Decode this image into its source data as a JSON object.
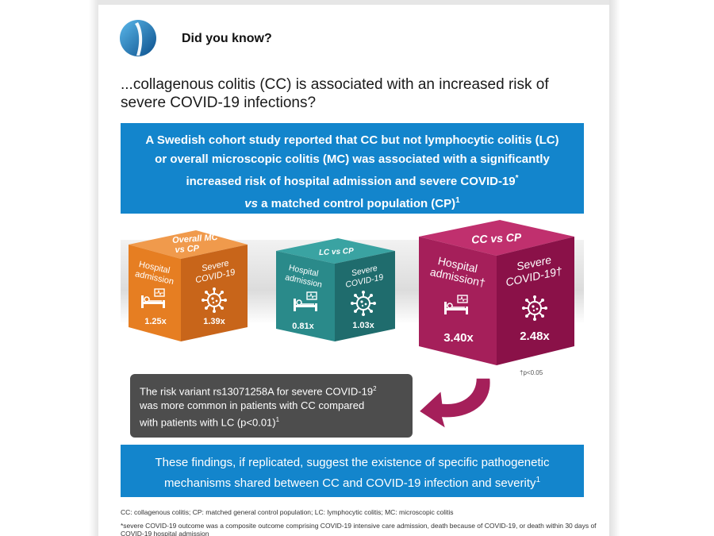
{
  "header": {
    "title": "Did you know?"
  },
  "question": {
    "line1": "...collagenous colitis (CC) is associated with an increased risk of",
    "line2": "severe COVID-19 infections?"
  },
  "banner": {
    "line1": "A Swedish cohort study reported that CC but not lymphocytic colitis (LC)",
    "line2": "or overall microscopic colitis (MC) was associated with a significantly",
    "line3": "increased risk of hospital admission and severe COVID-19",
    "line3_sup": "*",
    "line4_vs": "vs",
    "line4_rest": " a matched control population (CP)",
    "line4_sup": "1"
  },
  "cubes": [
    {
      "top_line1": "Overall MC",
      "top_line2": "vs CP",
      "left_label": [
        "Hospital",
        "admission"
      ],
      "right_label": [
        "Severe",
        "COVID-19"
      ],
      "left_value": "1.25x",
      "right_value": "1.39x"
    },
    {
      "top_line1": "LC vs CP",
      "left_label": [
        "Hospital",
        "admission"
      ],
      "right_label": [
        "Severe",
        "COVID-19"
      ],
      "left_value": "0.81x",
      "right_value": "1.03x"
    },
    {
      "top_line1": "CC vs CP",
      "left_label": [
        "Hospital",
        "admission†"
      ],
      "right_label": [
        "Severe",
        "COVID-19†"
      ],
      "left_value": "3.40x",
      "right_value": "2.48x"
    }
  ],
  "colors": {
    "blue": "#1385cc",
    "orange_top": "#f09a4c",
    "orange_left": "#e67e22",
    "orange_right": "#c8651a",
    "teal_top": "#3aa3a2",
    "teal_left": "#2a8a8a",
    "teal_right": "#1f6c6d",
    "magenta_top": "#c0306e",
    "magenta_left": "#a51f5a",
    "magenta_right": "#8a1148",
    "gray_box": "#4d4d4d"
  },
  "p_note": "†p<0.05",
  "gray_box": {
    "line1": "The risk variant rs13071258A for severe COVID-19",
    "line1_sup": "2",
    "line2": "was more common in patients with CC compared",
    "line3": "with patients with LC (p<0.01)",
    "line3_sup": "1"
  },
  "bottom_banner": {
    "line1": "These findings, if replicated, suggest the existence of specific pathogenetic",
    "line2": "mechanisms shared between CC and COVID-19 infection and severity",
    "line2_sup": "1"
  },
  "footnotes": {
    "abbrev": "CC: collagenous colitis; CP: matched general control population; LC: lymphocytic colitis; MC: microscopic colitis",
    "severe": "*severe COVID-19 outcome was a composite outcome comprising COVID-19 intensive care admission, death because of COVID-19, or death within 30 days of COVID-19 hospital admission"
  },
  "icons": [
    "logo-icon",
    "hospital-bed-icon",
    "virus-icon",
    "curved-arrow-icon"
  ]
}
